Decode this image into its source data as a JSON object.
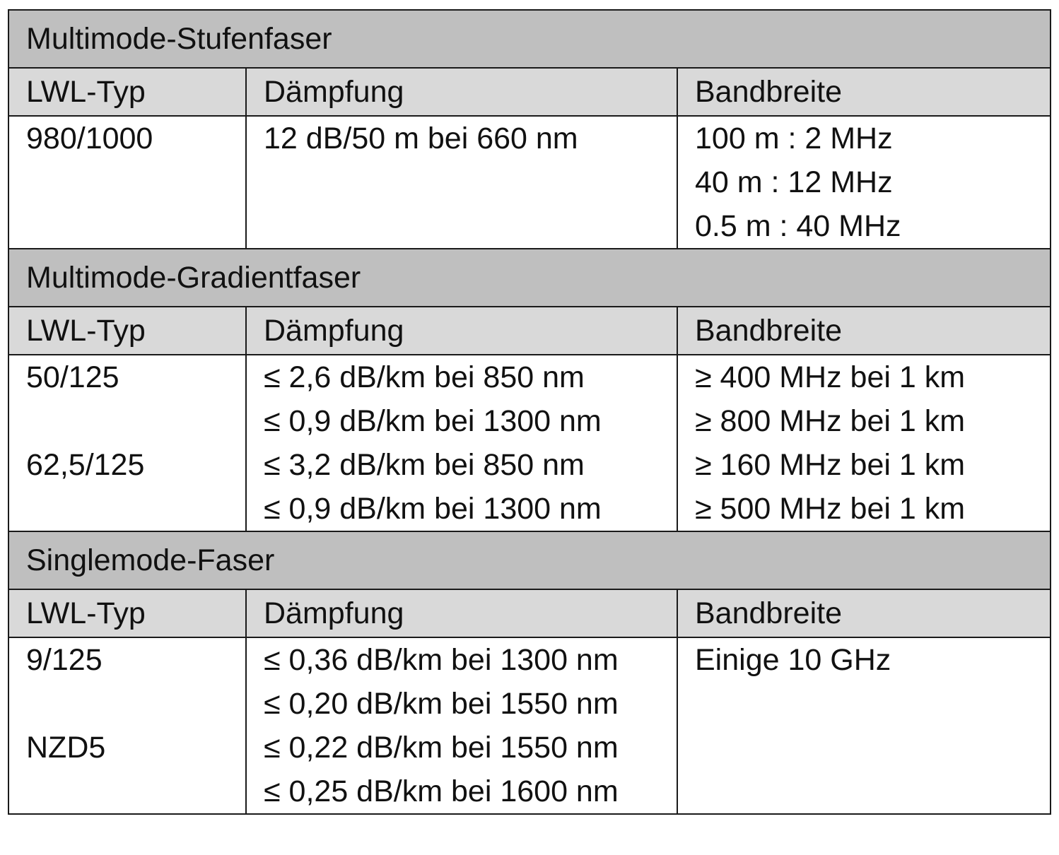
{
  "sections": [
    {
      "title": "Multimode-Stufenfaser",
      "headers": [
        "LWL-Typ",
        "Dämpfung",
        "Bandbreite"
      ],
      "types": [
        "980/1000"
      ],
      "attenuation": [
        "12 dB/50 m bei 660 nm"
      ],
      "bandwidth": [
        "100 m : 2 MHz",
        "40 m : 12 MHz",
        "0.5 m : 40 MHz"
      ]
    },
    {
      "title": "Multimode-Gradientfaser",
      "headers": [
        "LWL-Typ",
        "Dämpfung",
        "Bandbreite"
      ],
      "types": [
        "50/125",
        "",
        "62,5/125"
      ],
      "attenuation": [
        "≤ 2,6 dB/km bei 850 nm",
        "≤ 0,9 dB/km bei 1300 nm",
        "≤ 3,2 dB/km bei 850 nm",
        "≤ 0,9 dB/km bei 1300 nm"
      ],
      "bandwidth": [
        "≥ 400 MHz bei 1 km",
        "≥ 800 MHz bei 1 km",
        "≥ 160 MHz bei 1 km",
        "≥ 500 MHz bei 1 km"
      ]
    },
    {
      "title": "Singlemode-Faser",
      "headers": [
        "LWL-Typ",
        "Dämpfung",
        "Bandbreite"
      ],
      "types": [
        "9/125",
        "",
        "NZD5"
      ],
      "attenuation": [
        "≤ 0,36 dB/km bei 1300 nm",
        "≤ 0,20 dB/km bei 1550 nm",
        "≤ 0,22 dB/km bei 1550 nm",
        "≤ 0,25 dB/km bei 1600 nm"
      ],
      "bandwidth": [
        "Einige 10 GHz"
      ]
    }
  ]
}
